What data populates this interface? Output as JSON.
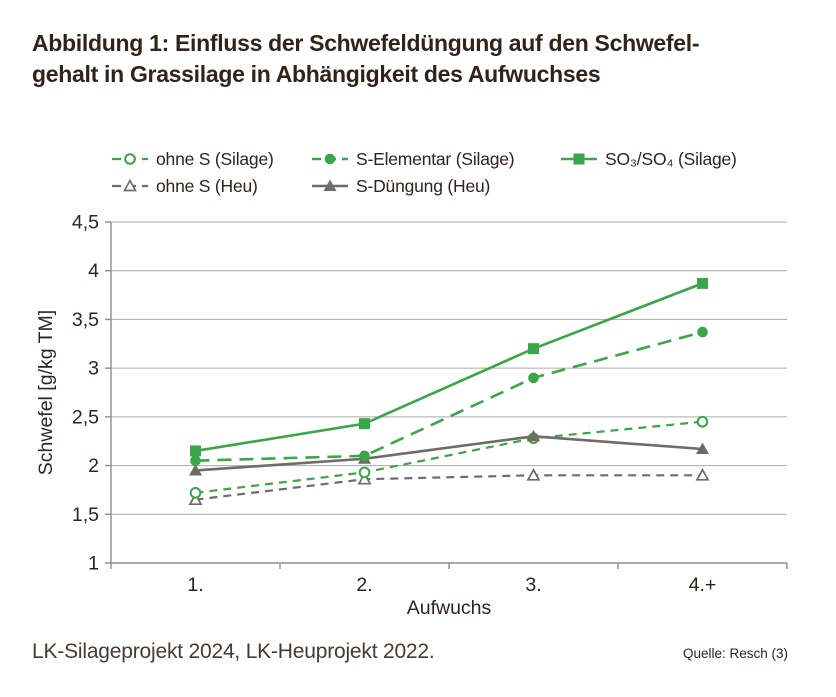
{
  "figure": {
    "title_line1": "Abbildung 1: Einfluss der Schwefeldüngung auf den Schwefel-",
    "title_line2": "gehalt in Grassilage in Abhängigkeit des Aufwuchses",
    "footer_left": "LK-Silageprojekt 2024, LK-Heuprojekt 2022.",
    "source": "Quelle: Resch (3)"
  },
  "colors": {
    "green": "#3aa549",
    "gray": "#6f6b67",
    "grid": "#aba9a6",
    "axis": "#8f8d8a",
    "text_dark": "#32231a",
    "background": "#ffffff"
  },
  "chart_data": {
    "type": "line",
    "title": "",
    "xlabel": "Aufwuchs",
    "ylabel": "Schwefel [g/kg TM]",
    "categories": [
      "1.",
      "2.",
      "3.",
      "4.+"
    ],
    "ylim": [
      1,
      4.5
    ],
    "grid": true,
    "legend_position": "top",
    "y_ticks": [
      {
        "label": "4,5",
        "value": 4.5
      },
      {
        "label": "4",
        "value": 4.0
      },
      {
        "label": "3,5",
        "value": 3.5
      },
      {
        "label": "3",
        "value": 3.0
      },
      {
        "label": "2,5",
        "value": 2.5
      },
      {
        "label": "2",
        "value": 2.0
      },
      {
        "label": "1,5",
        "value": 1.5
      },
      {
        "label": "1",
        "value": 1.0
      }
    ],
    "series": [
      {
        "name": "ohne S (Silage)",
        "values": [
          1.72,
          1.93,
          2.28,
          2.45
        ],
        "color": "#3aa549",
        "line": "dash-short",
        "marker": "circle-open"
      },
      {
        "name": "S-Elementar (Silage)",
        "values": [
          2.05,
          2.1,
          2.9,
          3.37
        ],
        "color": "#3aa549",
        "line": "dash-long",
        "marker": "circle-filled"
      },
      {
        "name": "SO₃/SO₄ (Silage)",
        "values": [
          2.15,
          2.43,
          3.2,
          3.87
        ],
        "color": "#3aa549",
        "line": "solid",
        "marker": "square-filled"
      },
      {
        "name": "ohne S (Heu)",
        "values": [
          1.65,
          1.86,
          1.9,
          1.9
        ],
        "color": "#6f6b67",
        "line": "dash-short",
        "marker": "triangle-open"
      },
      {
        "name": "S-Düngung (Heu)",
        "values": [
          1.95,
          2.07,
          2.3,
          2.17
        ],
        "color": "#6f6b67",
        "line": "solid",
        "marker": "triangle-filled"
      }
    ]
  }
}
